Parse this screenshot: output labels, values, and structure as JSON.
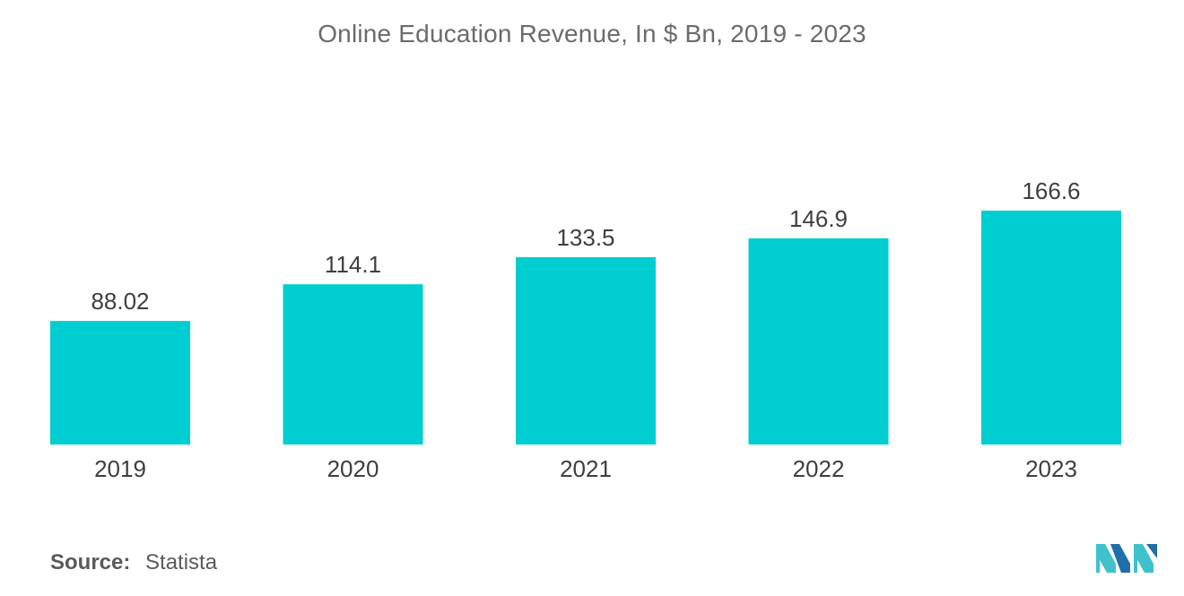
{
  "title": "Online Education Revenue, In $ Bn, 2019 - 2023",
  "source": {
    "label": "Source:",
    "value": "Statista"
  },
  "colors": {
    "bar": "#00CED1",
    "logo_dark": "#1f6fa8",
    "logo_light": "#3fc2cc"
  },
  "chart_data": {
    "type": "bar",
    "categories": [
      "2019",
      "2020",
      "2021",
      "2022",
      "2023"
    ],
    "values": [
      88.02,
      114.1,
      133.5,
      146.9,
      166.6
    ],
    "value_labels": [
      "88.02",
      "114.1",
      "133.5",
      "146.9",
      "166.6"
    ],
    "title": "Online Education Revenue, In $ Bn, 2019 - 2023",
    "xlabel": "",
    "ylabel": "",
    "ylim": [
      0,
      166.6
    ],
    "grid": false,
    "legend": "none"
  }
}
